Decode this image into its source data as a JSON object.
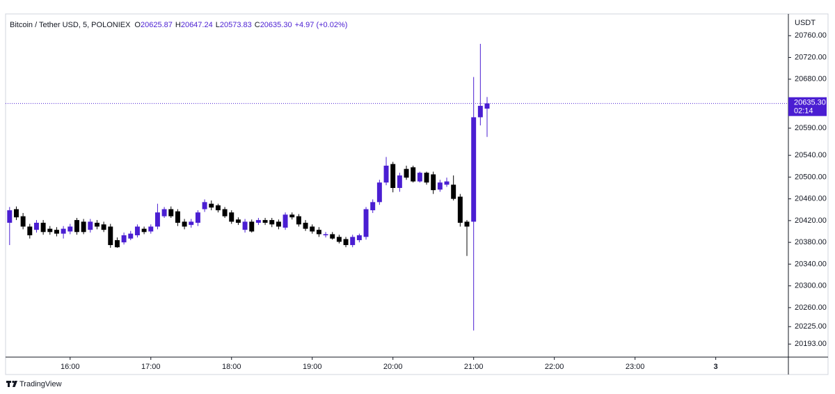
{
  "header": {
    "symbol": "Bitcoin / Tether USD, 5, POLONIEX",
    "ohlc": [
      {
        "key": "O",
        "value": "20625.87"
      },
      {
        "key": "H",
        "value": "20647.24"
      },
      {
        "key": "L",
        "value": "20573.83"
      },
      {
        "key": "C",
        "value": "20635.30"
      }
    ],
    "change": "+4.97 (+0.02%)"
  },
  "footer": {
    "brand": "TradingView"
  },
  "chart_data": {
    "type": "candlestick",
    "axis_title": "USDT",
    "up_color": "#4a1ed2",
    "down_color": "#000000",
    "x": [
      915,
      920,
      925,
      930,
      935,
      940,
      945,
      950,
      955,
      960,
      965,
      970,
      975,
      980,
      985,
      990,
      995,
      1000,
      1005,
      1010,
      1015,
      1020,
      1025,
      1030,
      1035,
      1040,
      1045,
      1050,
      1055,
      1060,
      1065,
      1070,
      1075,
      1080,
      1085,
      1090,
      1095,
      1100,
      1105,
      1110,
      1115,
      1120,
      1125,
      1130,
      1135,
      1140,
      1145,
      1150,
      1155,
      1160,
      1165,
      1170,
      1175,
      1180,
      1185,
      1190,
      1195,
      1200,
      1205,
      1210,
      1215,
      1220,
      1225,
      1230,
      1235,
      1240,
      1245,
      1250,
      1255,
      1260,
      1265,
      1270
    ],
    "open": [
      20416,
      20441,
      20428,
      20409,
      20403,
      20416,
      20405,
      20403,
      20396,
      20400,
      20421,
      20418,
      20403,
      20416,
      20413,
      20409,
      20384,
      20380,
      20387,
      20393,
      20405,
      20400,
      20409,
      20428,
      20441,
      20437,
      20418,
      20412,
      20416,
      20441,
      20451,
      20448,
      20441,
      20435,
      20422,
      20403,
      20418,
      20416,
      20421,
      20421,
      20418,
      20407,
      20431,
      20428,
      20416,
      20409,
      20403,
      20393,
      20395,
      20390,
      20386,
      20375,
      20384,
      20390,
      20439,
      20454,
      20490,
      20524,
      20480,
      20515,
      20518,
      20492,
      20508,
      20505,
      20477,
      20486,
      20486,
      20464,
      20418,
      20418,
      20610,
      20625.87
    ],
    "high": [
      20445,
      20446,
      20434,
      20414,
      20421,
      20421,
      20410,
      20408,
      20410,
      20414,
      20425,
      20423,
      20423,
      20421,
      20418,
      20414,
      20389,
      20398,
      20401,
      20413,
      20409,
      20413,
      20451,
      20445,
      20446,
      20441,
      20423,
      20423,
      20439,
      20459,
      20457,
      20451,
      20445,
      20439,
      20426,
      20423,
      20422,
      20425,
      20425,
      20425,
      20422,
      20435,
      20435,
      20432,
      20421,
      20413,
      20408,
      20399,
      20399,
      20394,
      20390,
      20394,
      20396,
      20445,
      20459,
      20495,
      20537,
      20528,
      20508,
      20521,
      20521,
      20510,
      20510,
      20510,
      20495,
      20499,
      20503,
      20469,
      20421,
      20684,
      20745,
      20647.24
    ],
    "low": [
      20375,
      20421,
      20404,
      20387,
      20398,
      20394,
      20394,
      20391,
      20387,
      20395,
      20394,
      20395,
      20398,
      20404,
      20399,
      20370,
      20370,
      20376,
      20384,
      20389,
      20395,
      20396,
      20404,
      20425,
      20425,
      20410,
      20404,
      20407,
      20410,
      20436,
      20439,
      20435,
      20425,
      20414,
      20412,
      20398,
      20398,
      20412,
      20412,
      20408,
      20404,
      20403,
      20422,
      20409,
      20401,
      20396,
      20390,
      20389,
      20385,
      20378,
      20371,
      20371,
      20380,
      20385,
      20434,
      20449,
      20485,
      20472,
      20473,
      20495,
      20490,
      20490,
      20486,
      20469,
      20473,
      20482,
      20457,
      20409,
      20355,
      20218,
      20595,
      20573.83
    ],
    "close": [
      20439,
      20426,
      20409,
      20393,
      20416,
      20399,
      20399,
      20396,
      20405,
      20409,
      20399,
      20399,
      20418,
      20409,
      20403,
      20375,
      20371,
      20393,
      20396,
      20409,
      20399,
      20409,
      20435,
      20441,
      20428,
      20416,
      20409,
      20418,
      20435,
      20454,
      20444,
      20439,
      20428,
      20418,
      20416,
      20418,
      20400,
      20421,
      20416,
      20413,
      20409,
      20431,
      20426,
      20413,
      20405,
      20400,
      20395,
      20395,
      20387,
      20381,
      20375,
      20390,
      20393,
      20441,
      20454,
      20490,
      20521,
      20480,
      20503,
      20499,
      20492,
      20508,
      20490,
      20476,
      20490,
      20492,
      20460,
      20416,
      20409,
      20610,
      20631,
      20635.3
    ],
    "last_price_label": "20635.30",
    "countdown": "02:14",
    "xlim": [
      912,
      1494
    ],
    "xticks": [
      {
        "value": 960,
        "label": "16:00"
      },
      {
        "value": 1020,
        "label": "17:00"
      },
      {
        "value": 1080,
        "label": "18:00"
      },
      {
        "value": 1140,
        "label": "19:00"
      },
      {
        "value": 1200,
        "label": "20:00"
      },
      {
        "value": 1260,
        "label": "21:00"
      },
      {
        "value": 1320,
        "label": "22:00"
      },
      {
        "value": 1380,
        "label": "23:00"
      },
      {
        "value": 1440,
        "label": "3"
      }
    ],
    "ylim": [
      20169,
      20800
    ],
    "yticks": [
      {
        "value": 20760,
        "label": "20760.00"
      },
      {
        "value": 20720,
        "label": "20720.00"
      },
      {
        "value": 20680,
        "label": "20680.00"
      },
      {
        "value": 20590,
        "label": "20590.00"
      },
      {
        "value": 20540,
        "label": "20540.00"
      },
      {
        "value": 20500,
        "label": "20500.00"
      },
      {
        "value": 20460,
        "label": "20460.00"
      },
      {
        "value": 20420,
        "label": "20420.00"
      },
      {
        "value": 20380,
        "label": "20380.00"
      },
      {
        "value": 20340,
        "label": "20340.00"
      },
      {
        "value": 20300,
        "label": "20300.00"
      },
      {
        "value": 20260,
        "label": "20260.00"
      },
      {
        "value": 20225,
        "label": "20225.00"
      },
      {
        "value": 20193,
        "label": "20193.00"
      }
    ],
    "grid": false
  }
}
